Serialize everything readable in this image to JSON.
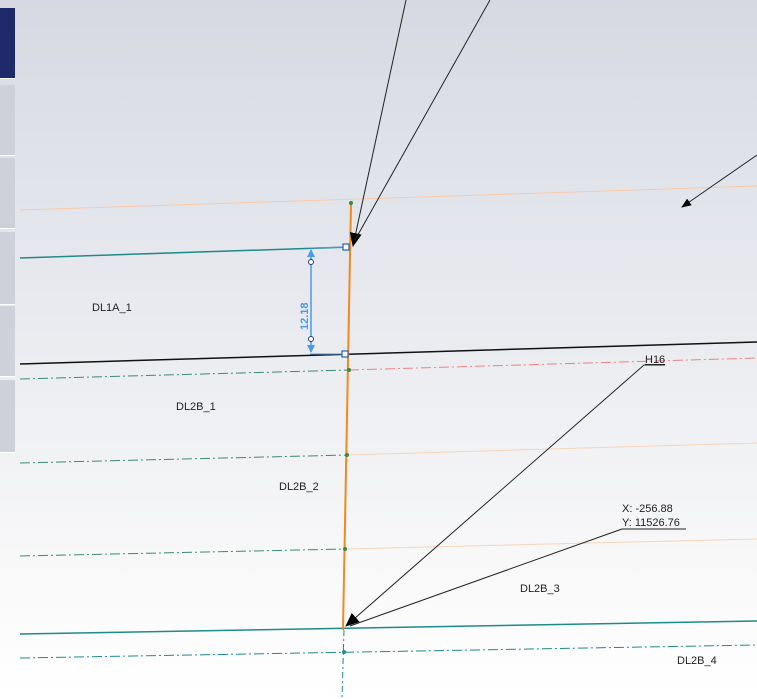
{
  "side_tabs": [
    {
      "name": "tab-1",
      "active": true
    },
    {
      "name": "tab-2",
      "active": false
    },
    {
      "name": "tab-3",
      "active": false
    },
    {
      "name": "tab-4",
      "active": false
    },
    {
      "name": "tab-5",
      "active": false
    },
    {
      "name": "tab-6",
      "active": false
    }
  ],
  "sketch": {
    "region_labels": {
      "dl1a_1": "DL1A_1",
      "dl2b_1": "DL2B_1",
      "dl2b_2": "DL2B_2",
      "dl2b_3": "DL2B_3",
      "dl2b_4": "DL2B_4"
    },
    "dimension_value": "12.18",
    "callout_label": "H16",
    "cursor_readout": {
      "x": "X: -256.88",
      "y": "Y: 11526.76"
    }
  },
  "colors": {
    "active_tab": "#1f2a6b",
    "inactive_tab": "#cfd1da",
    "teal_line": "#1f8a8a",
    "orange_line": "#f08a1c",
    "black_line": "#111111",
    "dimension_blue": "#4a9be8",
    "peach_line": "#f7c9a6",
    "red_dashed": "#f08080"
  }
}
